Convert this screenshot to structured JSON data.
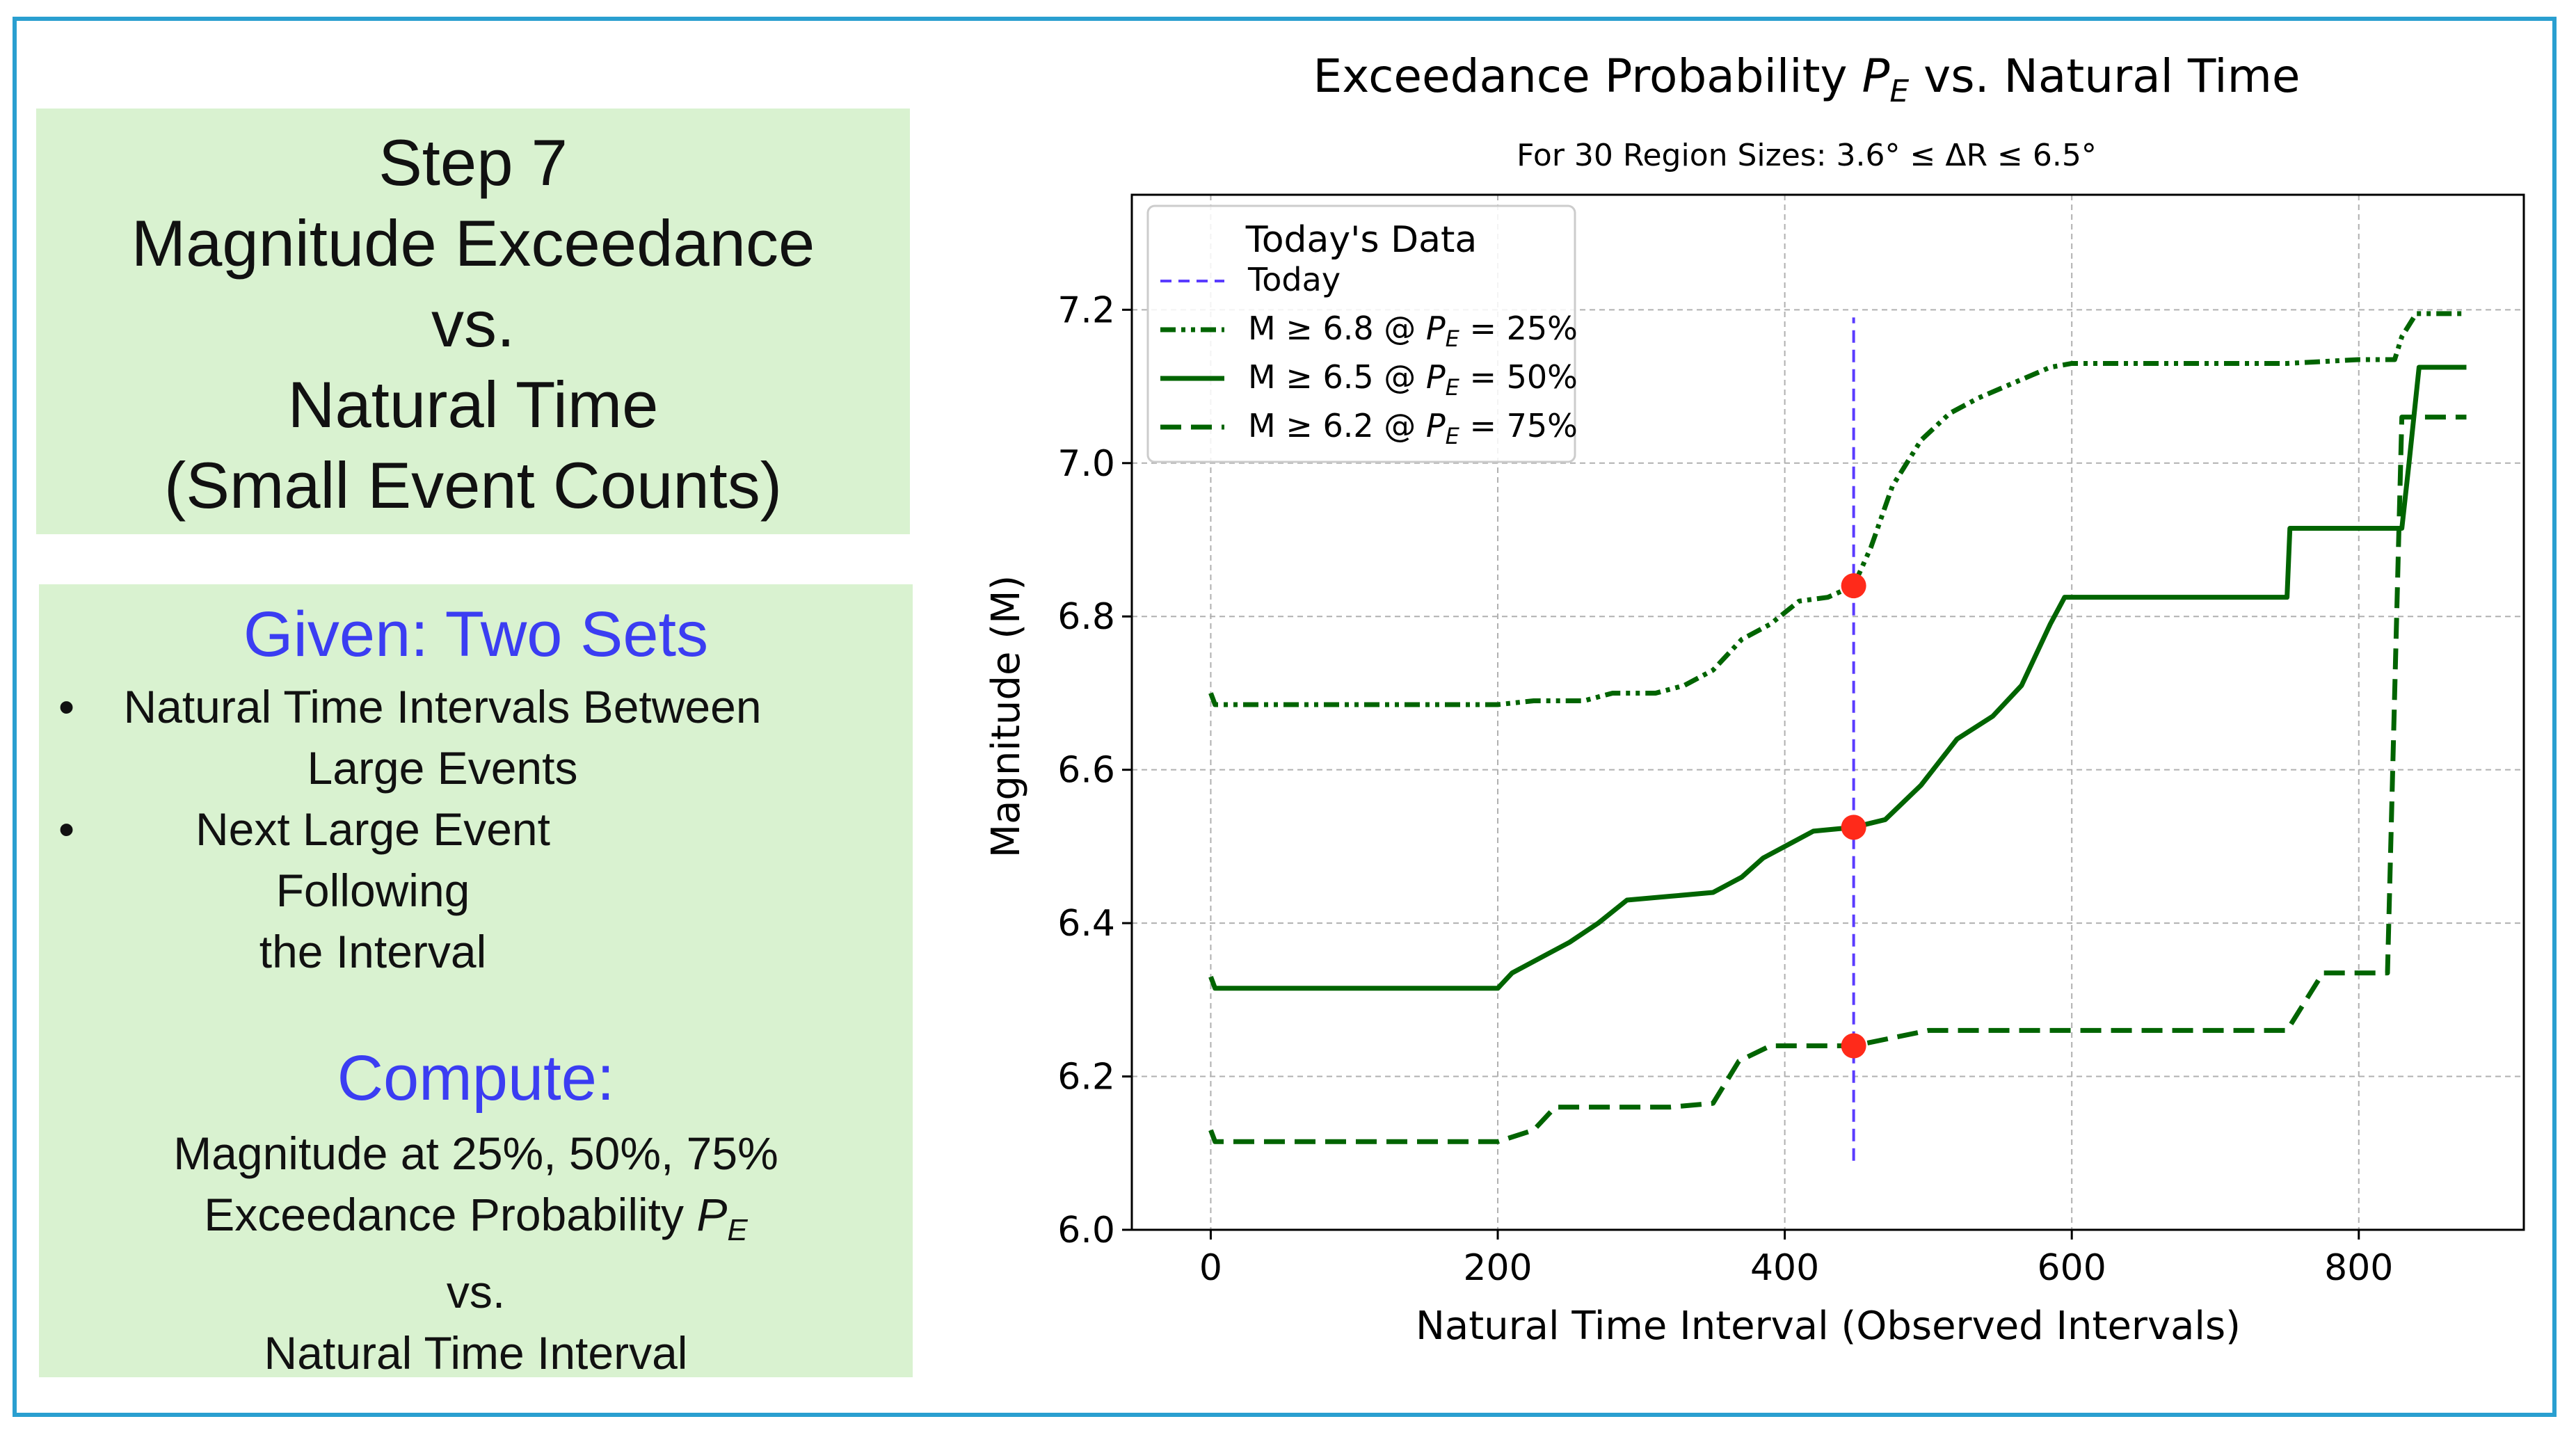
{
  "left_panel": {
    "title_lines": [
      "Step 7",
      "Magnitude Exceedance",
      "vs.",
      "Natural Time",
      "(Small Event Counts)"
    ],
    "given": {
      "heading": "Given: Two Sets",
      "bullets": [
        [
          "Natural Time Intervals Between",
          "Large Events"
        ],
        [
          "Next Large Event Following",
          "the Interval"
        ]
      ]
    },
    "compute": {
      "heading": "Compute:",
      "line1": "Magnitude at 25%, 50%, 75%",
      "line2_prefix": "Exceedance Probability ",
      "line2_symbol": "P",
      "line2_sub": "E",
      "line3": "vs.",
      "line4": "Natural Time Interval"
    }
  },
  "colors": {
    "panel_bg": "#d9f2d0",
    "heading_blue": "#3b3df2",
    "frame": "#2a9fd0",
    "series_green": "#006400",
    "today_line": "#5a3cff",
    "marker": "#ff2a1a"
  },
  "chart_data": {
    "type": "line",
    "title": "Exceedance Probability P_E vs. Natural Time",
    "title_main": "Exceedance Probability ",
    "title_sym": "P",
    "title_sub": "E",
    "title_tail": " vs. Natural Time",
    "subtitle": "For 30 Region Sizes: 3.6° ≤ ΔR ≤ 6.5°",
    "xlabel": "Natural Time Interval (Observed Intervals)",
    "ylabel": "Magnitude (M)",
    "xlim": [
      -55,
      915
    ],
    "ylim": [
      6.0,
      7.35
    ],
    "xticks": [
      0,
      200,
      400,
      600,
      800
    ],
    "yticks": [
      6.0,
      6.2,
      6.4,
      6.6,
      6.8,
      7.0,
      7.2
    ],
    "ytick_labels": [
      "6.0",
      "6.2",
      "6.4",
      "6.6",
      "6.8",
      "7.0",
      "7.2"
    ],
    "grid": true,
    "legend": {
      "title": "Today's Data",
      "placement": "upper-left",
      "entries": [
        {
          "label": "Today",
          "style": "dashed-blue"
        },
        {
          "label": "M ≥ 6.8 @ P_E = 25%",
          "prefix": "M ≥ 6.8 @ ",
          "sym": "P",
          "sub": "E",
          "suffix": " = 25%",
          "style": "dashdotdot"
        },
        {
          "label": "M ≥ 6.5 @ P_E = 50%",
          "prefix": "M ≥ 6.5 @ ",
          "sym": "P",
          "sub": "E",
          "suffix": " = 50%",
          "style": "solid"
        },
        {
          "label": "M ≥ 6.2 @ P_E = 75%",
          "prefix": "M ≥ 6.2 @ ",
          "sym": "P",
          "sub": "E",
          "suffix": " = 75%",
          "style": "dashed"
        }
      ]
    },
    "today": {
      "x": 448,
      "y_range": [
        6.09,
        7.19
      ]
    },
    "markers": [
      {
        "x": 448,
        "y": 6.84
      },
      {
        "x": 448,
        "y": 6.525
      },
      {
        "x": 448,
        "y": 6.24
      }
    ],
    "series": [
      {
        "name": "M ≥ 6.8 @ P_E = 25%",
        "style": "dashdotdot",
        "x": [
          0,
          3,
          200,
          225,
          260,
          280,
          310,
          330,
          350,
          370,
          390,
          410,
          430,
          448,
          460,
          475,
          495,
          515,
          535,
          560,
          585,
          600,
          650,
          700,
          750,
          800,
          825,
          830,
          840,
          875
        ],
        "y": [
          6.7,
          6.685,
          6.685,
          6.69,
          6.69,
          6.7,
          6.7,
          6.71,
          6.73,
          6.77,
          6.79,
          6.82,
          6.825,
          6.84,
          6.89,
          6.97,
          7.03,
          7.065,
          7.085,
          7.105,
          7.125,
          7.13,
          7.13,
          7.13,
          7.13,
          7.135,
          7.135,
          7.165,
          7.195,
          7.195
        ]
      },
      {
        "name": "M ≥ 6.5 @ P_E = 50%",
        "style": "solid",
        "x": [
          0,
          3,
          200,
          210,
          235,
          250,
          270,
          290,
          320,
          350,
          370,
          385,
          405,
          420,
          448,
          470,
          495,
          520,
          545,
          565,
          585,
          595,
          650,
          750,
          752,
          830,
          835,
          842,
          875
        ],
        "y": [
          6.33,
          6.315,
          6.315,
          6.335,
          6.36,
          6.375,
          6.4,
          6.43,
          6.435,
          6.44,
          6.46,
          6.485,
          6.505,
          6.52,
          6.525,
          6.535,
          6.58,
          6.64,
          6.67,
          6.71,
          6.79,
          6.825,
          6.825,
          6.825,
          6.915,
          6.915,
          7.0,
          7.125,
          7.125
        ]
      },
      {
        "name": "M ≥ 6.2 @ P_E = 75%",
        "style": "dashed",
        "x": [
          0,
          3,
          200,
          225,
          240,
          320,
          350,
          368,
          390,
          420,
          448,
          500,
          600,
          700,
          750,
          775,
          820,
          825,
          830,
          875
        ],
        "y": [
          6.13,
          6.115,
          6.115,
          6.13,
          6.16,
          6.16,
          6.165,
          6.22,
          6.24,
          6.24,
          6.24,
          6.26,
          6.26,
          6.26,
          6.26,
          6.335,
          6.335,
          6.7,
          7.06,
          7.06
        ]
      }
    ]
  }
}
